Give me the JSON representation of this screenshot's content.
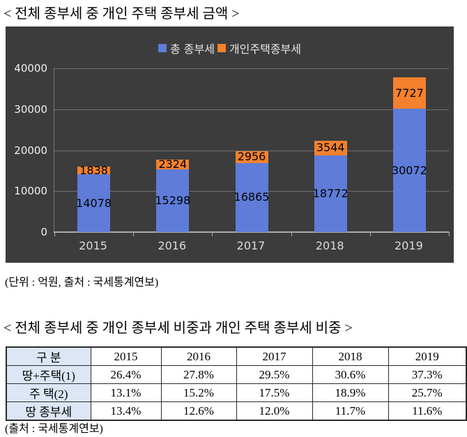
{
  "page": {
    "title1": "< 전체 종부세 중 개인 주택 종부세 금액 >",
    "caption1": "(단위 : 억원, 출처 : 국세통계연보)",
    "title2": "< 전체 종부세 중 개인 종부세 비중과 개인 주택 종부세 비중 >",
    "caption2": "(출처 : 국세통계연보)"
  },
  "chart_data": [
    {
      "type": "bar",
      "stacked": true,
      "title": "< 전체 종부세 중 개인 주택 종부세 금액 >",
      "categories": [
        "2015",
        "2016",
        "2017",
        "2018",
        "2019"
      ],
      "series": [
        {
          "name": "총 종부세",
          "color": "#5E7CD8",
          "values": [
            14078,
            15298,
            16865,
            18772,
            30072
          ]
        },
        {
          "name": "개인주택종부세",
          "color": "#F3812E",
          "values": [
            1838,
            2324,
            2956,
            3544,
            7727
          ]
        }
      ],
      "ylim": [
        0,
        40000
      ],
      "yticks": [
        0,
        10000,
        20000,
        30000,
        40000
      ],
      "legend_position": "top-center",
      "grid": true,
      "data_labels": true,
      "plot_background": "#3C3C3C",
      "unit_note": "(단위 : 억원, 출처 : 국세통계연보)"
    },
    {
      "type": "table",
      "title": "< 전체 종부세 중 개인 종부세 비중과 개인 주택 종부세 비중 >",
      "columns": [
        "구  분",
        "2015",
        "2016",
        "2017",
        "2018",
        "2019"
      ],
      "rows": [
        {
          "label": "땅+주택(1)",
          "values": [
            "26.4%",
            "27.8%",
            "29.5%",
            "30.6%",
            "37.3%"
          ]
        },
        {
          "label": "주  택(2)",
          "values": [
            "13.1%",
            "15.2%",
            "17.5%",
            "18.9%",
            "25.7%"
          ]
        },
        {
          "label": "땅 종부세",
          "values": [
            "13.4%",
            "12.6%",
            "12.0%",
            "11.7%",
            "11.6%"
          ]
        }
      ],
      "row_header_background": "#DCE6F5",
      "source_note": "(출처 : 국세통계연보)"
    }
  ]
}
